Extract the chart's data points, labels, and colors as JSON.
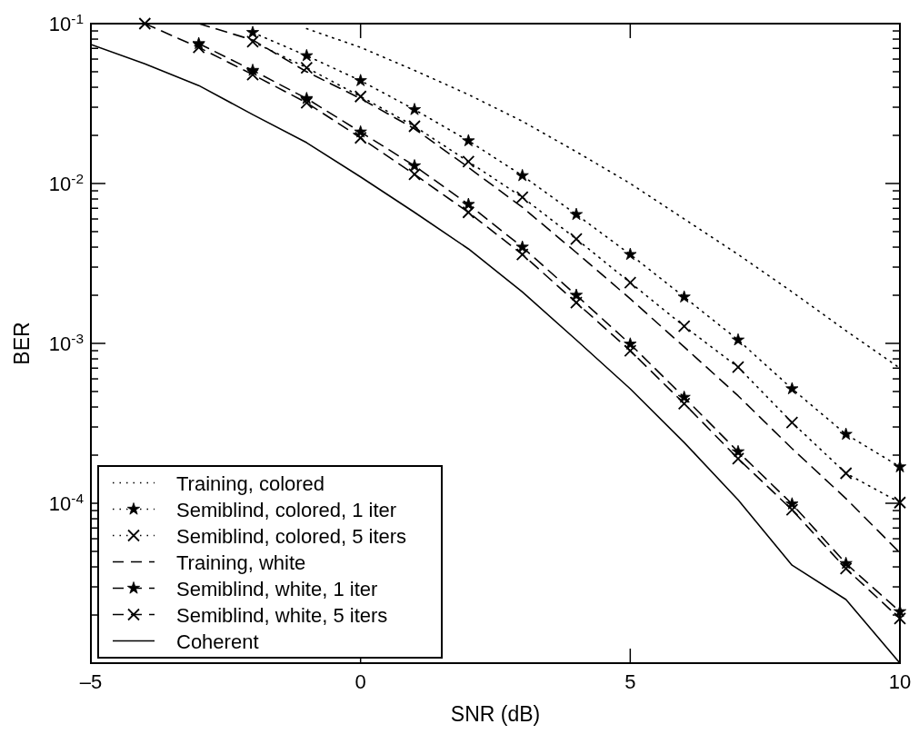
{
  "chart_data": {
    "type": "line",
    "xlabel": "SNR (dB)",
    "ylabel": "BER",
    "log": "y",
    "grid": false,
    "legend": "bottom left",
    "xlim": [
      -5,
      10
    ],
    "xticks": [
      {
        "value": -5,
        "label": "–5"
      },
      0,
      5,
      10
    ],
    "ylim": [
      1e-05,
      0.1
    ],
    "yticks": [
      {
        "value": 0.1,
        "label": "10$^{-1}$"
      },
      {
        "value": 0.09,
        "label": null
      },
      {
        "value": 0.08,
        "label": null
      },
      {
        "value": 0.07,
        "label": null
      },
      {
        "value": 0.06,
        "label": null
      },
      {
        "value": 0.05,
        "label": null
      },
      {
        "value": 0.04,
        "label": null
      },
      {
        "value": 0.03,
        "label": null
      },
      {
        "value": 0.02,
        "label": null
      },
      {
        "value": 0.01,
        "label": "10$^{-2}$"
      },
      {
        "value": 0.009,
        "label": null
      },
      {
        "value": 0.008,
        "label": null
      },
      {
        "value": 0.007,
        "label": null
      },
      {
        "value": 0.006,
        "label": null
      },
      {
        "value": 0.005,
        "label": null
      },
      {
        "value": 0.004,
        "label": null
      },
      {
        "value": 0.003,
        "label": null
      },
      {
        "value": 0.002,
        "label": null
      },
      {
        "value": 0.001,
        "label": "10$^{-3}$"
      },
      {
        "value": 0.0009,
        "label": null
      },
      {
        "value": 0.0008,
        "label": null
      },
      {
        "value": 0.0007,
        "label": null
      },
      {
        "value": 0.0006,
        "label": null
      },
      {
        "value": 0.0005,
        "label": null
      },
      {
        "value": 0.0004,
        "label": null
      },
      {
        "value": 0.0003,
        "label": null
      },
      {
        "value": 0.0002,
        "label": null
      },
      {
        "value": 0.0001,
        "label": "10$^{-4}$"
      },
      {
        "value": 9e-05,
        "label": null
      },
      {
        "value": 8e-05,
        "label": null
      },
      {
        "value": 7e-05,
        "label": null
      },
      {
        "value": 6e-05,
        "label": null
      },
      {
        "value": 5e-05,
        "label": null
      },
      {
        "value": 4e-05,
        "label": null
      },
      {
        "value": 3e-05,
        "label": null
      },
      {
        "value": 2e-05,
        "label": null
      }
    ],
    "series": [
      {
        "name": "Training, colored",
        "color": "#000000",
        "line_style": "dotted",
        "marker": "none",
        "x": [
          -1,
          0,
          1,
          2,
          3,
          4,
          5,
          6,
          7,
          8,
          9,
          10
        ],
        "values": [
          0.093,
          0.071,
          0.051,
          0.036,
          0.0245,
          0.0158,
          0.01,
          0.006,
          0.0036,
          0.0021,
          0.0012,
          0.0007
        ]
      },
      {
        "name": "Semiblind, colored, 1 iter",
        "color": "#000000",
        "line_style": "dotted",
        "marker": "star",
        "x": [
          -2,
          -1,
          0,
          1,
          2,
          3,
          4,
          5,
          6,
          7,
          8,
          9,
          10
        ],
        "values": [
          0.088,
          0.063,
          0.044,
          0.029,
          0.0185,
          0.0112,
          0.0064,
          0.0036,
          0.00195,
          0.00105,
          0.00052,
          0.00027,
          0.000169
        ]
      },
      {
        "name": "Semiblind, colored, 5 iters",
        "color": "#000000",
        "line_style": "dotted",
        "marker": "cross",
        "x": [
          -2,
          -1,
          0,
          1,
          2,
          3,
          4,
          5,
          6,
          7,
          8,
          9,
          10
        ],
        "values": [
          0.077,
          0.053,
          0.035,
          0.0228,
          0.0137,
          0.0082,
          0.0045,
          0.0024,
          0.00128,
          0.00071,
          0.00032,
          0.000154,
          0.000101
        ]
      },
      {
        "name": "Training, white",
        "color": "#000000",
        "line_style": "dashed",
        "marker": "none",
        "x": [
          -3,
          -2,
          -1,
          0,
          1,
          2,
          3,
          4,
          5,
          6,
          7,
          8,
          9,
          10
        ],
        "values": [
          0.1,
          0.079,
          0.05,
          0.034,
          0.022,
          0.0126,
          0.0071,
          0.0037,
          0.0019,
          0.00095,
          0.00047,
          0.00022,
          0.000107,
          4.9e-05
        ]
      },
      {
        "name": "Semiblind, white, 1 iter",
        "color": "#000000",
        "line_style": "dashed",
        "marker": "star",
        "x": [
          -3,
          -2,
          -1,
          0,
          1,
          2,
          3,
          4,
          5,
          6,
          7,
          8,
          9,
          10
        ],
        "values": [
          0.075,
          0.051,
          0.034,
          0.021,
          0.0129,
          0.0074,
          0.004,
          0.002,
          0.00099,
          0.00046,
          0.00021,
          9.9e-05,
          4.2e-05,
          2.1e-05
        ]
      },
      {
        "name": "Semiblind, white, 5 iters",
        "color": "#000000",
        "line_style": "dashed",
        "marker": "cross",
        "x": [
          -4,
          -3,
          -2,
          -1,
          0,
          1,
          2,
          3,
          4,
          5,
          6,
          7,
          8,
          9,
          10
        ],
        "values": [
          0.1,
          0.071,
          0.048,
          0.032,
          0.0193,
          0.0114,
          0.0066,
          0.0036,
          0.0018,
          0.0009,
          0.00042,
          0.00019,
          9.1e-05,
          3.9e-05,
          1.9e-05
        ]
      },
      {
        "name": "Coherent",
        "color": "#000000",
        "line_style": "solid",
        "marker": "none",
        "x": [
          -5,
          -4,
          -3,
          -2,
          -1,
          0,
          1,
          2,
          3,
          4,
          5,
          6,
          7,
          8,
          9,
          10
        ],
        "values": [
          0.074,
          0.056,
          0.041,
          0.027,
          0.018,
          0.011,
          0.0066,
          0.0039,
          0.0021,
          0.00105,
          0.00052,
          0.00024,
          0.000105,
          4.1e-05,
          2.5e-05,
          1e-05
        ]
      }
    ]
  }
}
